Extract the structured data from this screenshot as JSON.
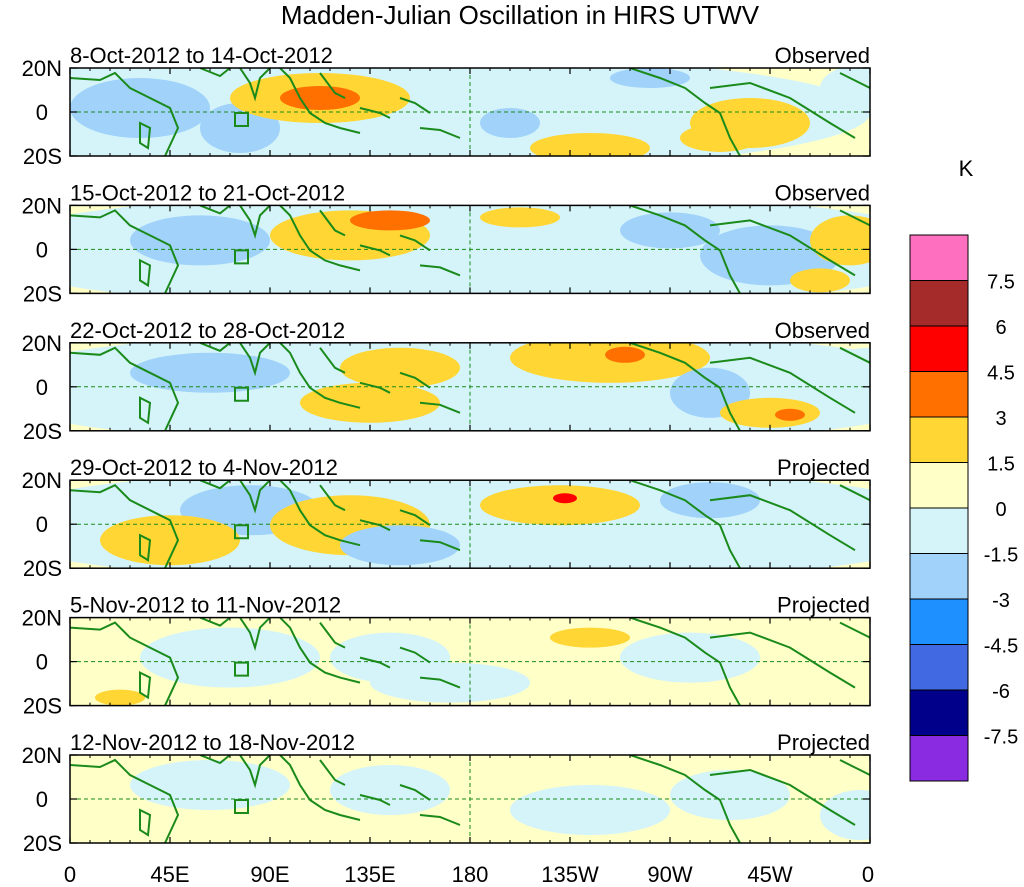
{
  "title": "Madden-Julian Oscillation in HIRS UTWV",
  "units_label": "K",
  "y_ticks": [
    "20N",
    "0",
    "20S"
  ],
  "x_ticks": [
    "0",
    "45E",
    "90E",
    "135E",
    "180",
    "135W",
    "90W",
    "45W",
    "0"
  ],
  "panels": [
    {
      "period": "8-Oct-2012 to 14-Oct-2012",
      "status": "Observed"
    },
    {
      "period": "15-Oct-2012 to 21-Oct-2012",
      "status": "Observed"
    },
    {
      "period": "22-Oct-2012 to 28-Oct-2012",
      "status": "Observed"
    },
    {
      "period": "29-Oct-2012 to 4-Nov-2012",
      "status": "Projected"
    },
    {
      "period": "5-Nov-2012 to 11-Nov-2012",
      "status": "Projected"
    },
    {
      "period": "12-Nov-2012 to 18-Nov-2012",
      "status": "Projected"
    }
  ],
  "colorbar": {
    "labels": [
      "7.5",
      "6",
      "4.5",
      "3",
      "1.5",
      "0",
      "-1.5",
      "-3",
      "-4.5",
      "-6",
      "-7.5"
    ],
    "colors": [
      "#ff6fc0",
      "#a52a2a",
      "#ff0000",
      "#ff7000",
      "#ffd633",
      "#ffffc8",
      "#d4f4fa",
      "#a0d2fa",
      "#1e90ff",
      "#4169e1",
      "#00008b",
      "#8a2be2"
    ]
  },
  "map_colors": {
    "neutral_light": "#ffffc8",
    "neutral_cool": "#d4f4fa",
    "coast": "#1a8a1a",
    "grid": "#1a8a1a"
  }
}
